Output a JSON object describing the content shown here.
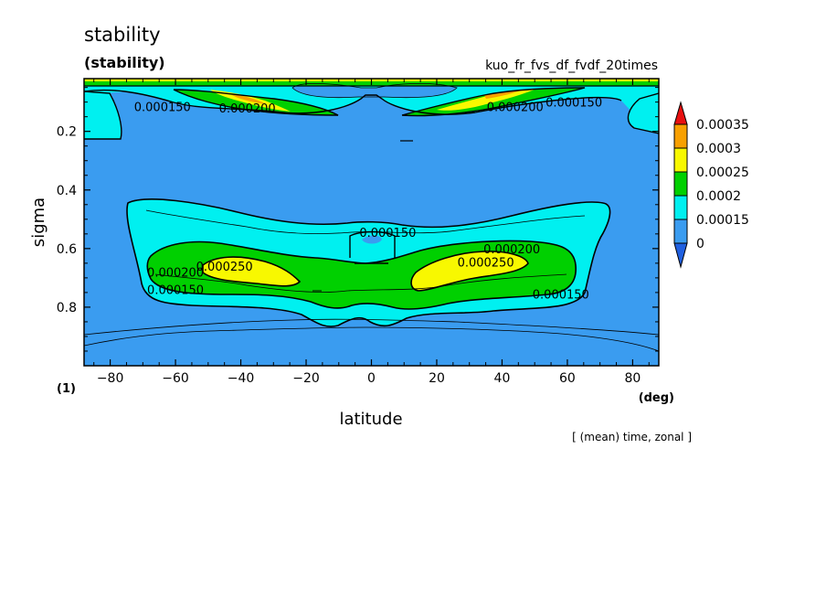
{
  "title": "stability",
  "subtitle": "(stability)",
  "run_name": "kuo_fr_fvs_df_fvdf_20times",
  "footer_note": "[ (mean) time, zonal ]",
  "colors": {
    "band_0": "#3a9cf0",
    "band_1": "#00f0f0",
    "band_2": "#00d000",
    "band_3": "#f8f800",
    "band_4": "#f8a000",
    "over": "#e81010",
    "under": "#2060e0",
    "line": "#000000"
  },
  "chart_data": {
    "type": "contour",
    "title": "stability",
    "subtitle": "(stability)",
    "xlabel": "latitude",
    "xunit": "(deg)",
    "ylabel": "sigma",
    "yunit": "(1)",
    "xlim": [
      -88,
      88
    ],
    "ylim": [
      1.0,
      0.02
    ],
    "xticks": [
      -80,
      -60,
      -40,
      -20,
      0,
      20,
      40,
      60,
      80
    ],
    "yticks": [
      0.2,
      0.4,
      0.6,
      0.8
    ],
    "colorbar_levels": [
      "0",
      "0.00015",
      "0.0002",
      "0.00025",
      "0.0003",
      "0.00035"
    ],
    "contour_labels": [
      {
        "text": "0.000150",
        "lat": -64,
        "sigma": 0.115
      },
      {
        "text": "0.000200",
        "lat": -38,
        "sigma": 0.12
      },
      {
        "text": "0.000200",
        "lat": 44,
        "sigma": 0.115
      },
      {
        "text": "0.000150",
        "lat": 62,
        "sigma": 0.1
      },
      {
        "text": "0.000150",
        "lat": 5,
        "sigma": 0.545
      },
      {
        "text": "0.000200",
        "lat": 43,
        "sigma": 0.6
      },
      {
        "text": "0.000200",
        "lat": -60,
        "sigma": 0.68
      },
      {
        "text": "0.000250",
        "lat": -45,
        "sigma": 0.66
      },
      {
        "text": "0.000250",
        "lat": 35,
        "sigma": 0.645
      },
      {
        "text": "0.000150",
        "lat": -60,
        "sigma": 0.74
      },
      {
        "text": "0.000150",
        "lat": 58,
        "sigma": 0.755
      }
    ]
  }
}
